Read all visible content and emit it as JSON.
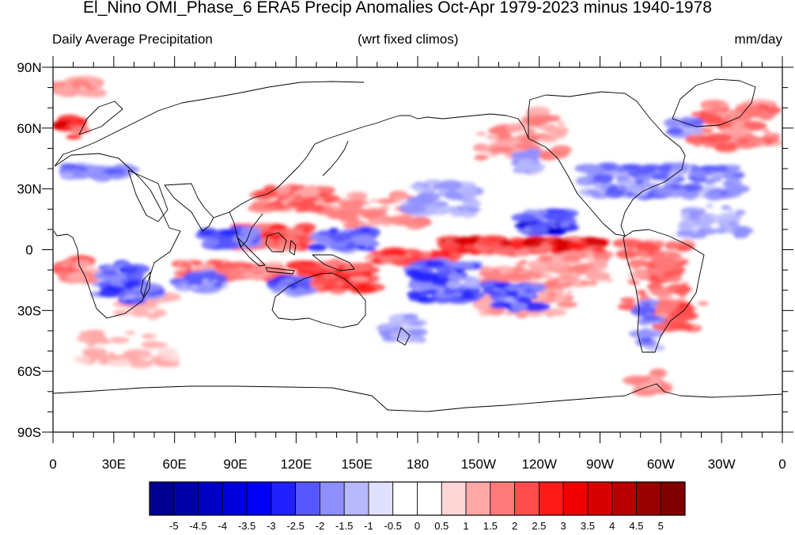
{
  "title": "El_Nino OMI_Phase_6 ERA5 Precip Anomalies Oct-Apr 1979-2023 minus 1940-1978",
  "subtitle_left": "Daily Average Precipitation",
  "subtitle_center": "(wrt fixed climos)",
  "subtitle_right": "mm/day",
  "lat_labels": [
    "90N",
    "60N",
    "30N",
    "0",
    "30S",
    "60S",
    "90S"
  ],
  "lon_labels": [
    "0",
    "30E",
    "60E",
    "90E",
    "120E",
    "150E",
    "180",
    "150W",
    "120W",
    "90W",
    "60W",
    "30W",
    "0"
  ],
  "colorbar": {
    "labels": [
      "-5",
      "-4.5",
      "-4",
      "-3.5",
      "-3",
      "-2.5",
      "-2",
      "-1.5",
      "-1",
      "-0.5",
      "0",
      "0.5",
      "1",
      "1.5",
      "2",
      "2.5",
      "3",
      "3.5",
      "4",
      "4.5",
      "5"
    ],
    "colors": [
      "#00008f",
      "#0000a8",
      "#0000c2",
      "#0000db",
      "#0000f5",
      "#2020ff",
      "#5757ff",
      "#8f8fff",
      "#b8b8ff",
      "#e0e0ff",
      "#ffffff",
      "#ffffff",
      "#ffd6d6",
      "#ffa8a8",
      "#ff7a7a",
      "#ff4d4d",
      "#ff1a1a",
      "#f00000",
      "#d60000",
      "#b80000",
      "#990000",
      "#800000"
    ]
  }
}
